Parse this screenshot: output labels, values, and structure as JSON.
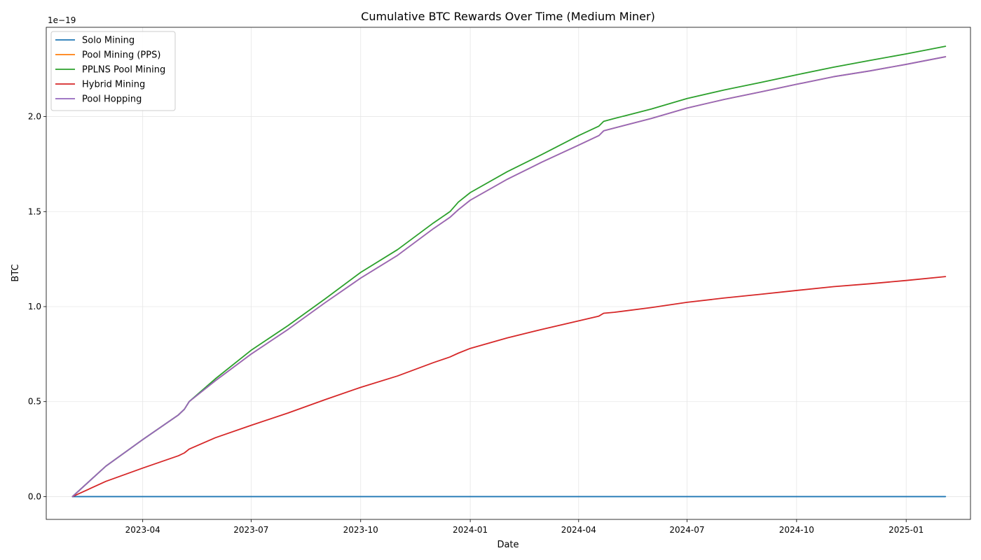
{
  "chart_data": {
    "type": "line",
    "title": "Cumulative BTC Rewards Over Time (Medium Miner)",
    "xlabel": "Date",
    "ylabel": "BTC",
    "y_offset_text": "1e−19",
    "xlim": [
      "2023-01-10",
      "2025-02-24"
    ],
    "ylim": [
      -1.2e-20,
      2.47e-19
    ],
    "x_ticks": [
      "2023-04-01",
      "2023-07-01",
      "2023-10-01",
      "2024-01-01",
      "2024-04-01",
      "2024-07-01",
      "2024-10-01",
      "2025-01-01"
    ],
    "x_tick_labels": [
      "2023-04",
      "2023-07",
      "2023-10",
      "2024-01",
      "2024-04",
      "2024-07",
      "2024-10",
      "2025-01"
    ],
    "y_ticks": [
      0,
      5e-20,
      1e-19,
      1.5e-19,
      2e-19
    ],
    "y_tick_labels": [
      "0.0",
      "0.5",
      "1.0",
      "1.5",
      "2.0"
    ],
    "grid": true,
    "legend_position": "upper-left",
    "series": [
      {
        "name": "Solo Mining",
        "color": "#1f77b4",
        "points": [
          [
            "2023-02-01",
            0
          ],
          [
            "2025-02-03",
            0
          ]
        ]
      },
      {
        "name": "Pool Mining (PPS)",
        "color": "#ff7f0e",
        "points": [
          [
            "2023-02-01",
            0
          ],
          [
            "2023-03-01",
            1.6e-20
          ],
          [
            "2023-04-01",
            3e-20
          ],
          [
            "2023-05-01",
            4.3e-20
          ],
          [
            "2023-05-06",
            4.6e-20
          ],
          [
            "2023-05-10",
            5e-20
          ],
          [
            "2023-06-01",
            6.1e-20
          ],
          [
            "2023-07-01",
            7.5e-20
          ],
          [
            "2023-08-01",
            8.8e-20
          ],
          [
            "2023-09-01",
            1.02e-19
          ],
          [
            "2023-10-01",
            1.15e-19
          ],
          [
            "2023-11-01",
            1.27e-19
          ],
          [
            "2023-12-01",
            1.41e-19
          ],
          [
            "2023-12-15",
            1.47e-19
          ],
          [
            "2023-12-22",
            1.51e-19
          ],
          [
            "2024-01-01",
            1.56e-19
          ],
          [
            "2024-02-01",
            1.67e-19
          ],
          [
            "2024-03-01",
            1.76e-19
          ],
          [
            "2024-04-01",
            1.85e-19
          ],
          [
            "2024-04-18",
            1.9e-19
          ],
          [
            "2024-04-22",
            1.925e-19
          ],
          [
            "2024-05-01",
            1.94e-19
          ],
          [
            "2024-06-01",
            1.99e-19
          ],
          [
            "2024-07-01",
            2.045e-19
          ],
          [
            "2024-08-01",
            2.09e-19
          ],
          [
            "2024-09-01",
            2.13e-19
          ],
          [
            "2024-10-01",
            2.17e-19
          ],
          [
            "2024-11-01",
            2.21e-19
          ],
          [
            "2024-12-01",
            2.24e-19
          ],
          [
            "2025-01-01",
            2.275e-19
          ],
          [
            "2025-02-03",
            2.315e-19
          ]
        ]
      },
      {
        "name": "PPLNS Pool Mining",
        "color": "#2ca02c",
        "points": [
          [
            "2023-02-01",
            0
          ],
          [
            "2023-03-01",
            1.6e-20
          ],
          [
            "2023-04-01",
            3e-20
          ],
          [
            "2023-05-01",
            4.3e-20
          ],
          [
            "2023-05-06",
            4.6e-20
          ],
          [
            "2023-05-10",
            5e-20
          ],
          [
            "2023-06-01",
            6.2e-20
          ],
          [
            "2023-07-01",
            7.7e-20
          ],
          [
            "2023-08-01",
            9e-20
          ],
          [
            "2023-09-01",
            1.04e-19
          ],
          [
            "2023-10-01",
            1.18e-19
          ],
          [
            "2023-11-01",
            1.3e-19
          ],
          [
            "2023-12-01",
            1.44e-19
          ],
          [
            "2023-12-15",
            1.5e-19
          ],
          [
            "2023-12-22",
            1.55e-19
          ],
          [
            "2024-01-01",
            1.6e-19
          ],
          [
            "2024-02-01",
            1.71e-19
          ],
          [
            "2024-03-01",
            1.8e-19
          ],
          [
            "2024-04-01",
            1.9e-19
          ],
          [
            "2024-04-18",
            1.95e-19
          ],
          [
            "2024-04-22",
            1.975e-19
          ],
          [
            "2024-05-01",
            1.99e-19
          ],
          [
            "2024-06-01",
            2.04e-19
          ],
          [
            "2024-07-01",
            2.095e-19
          ],
          [
            "2024-08-01",
            2.14e-19
          ],
          [
            "2024-09-01",
            2.18e-19
          ],
          [
            "2024-10-01",
            2.22e-19
          ],
          [
            "2024-11-01",
            2.26e-19
          ],
          [
            "2024-12-01",
            2.295e-19
          ],
          [
            "2025-01-01",
            2.33e-19
          ],
          [
            "2025-02-03",
            2.37e-19
          ]
        ]
      },
      {
        "name": "Hybrid Mining",
        "color": "#d62728",
        "points": [
          [
            "2023-02-01",
            0
          ],
          [
            "2023-03-01",
            8e-21
          ],
          [
            "2023-04-01",
            1.5e-20
          ],
          [
            "2023-05-01",
            2.15e-20
          ],
          [
            "2023-05-06",
            2.3e-20
          ],
          [
            "2023-05-10",
            2.5e-20
          ],
          [
            "2023-06-01",
            3.1e-20
          ],
          [
            "2023-07-01",
            3.75e-20
          ],
          [
            "2023-08-01",
            4.4e-20
          ],
          [
            "2023-09-01",
            5.1e-20
          ],
          [
            "2023-10-01",
            5.75e-20
          ],
          [
            "2023-11-01",
            6.35e-20
          ],
          [
            "2023-12-01",
            7.05e-20
          ],
          [
            "2023-12-15",
            7.35e-20
          ],
          [
            "2023-12-22",
            7.55e-20
          ],
          [
            "2024-01-01",
            7.8e-20
          ],
          [
            "2024-02-01",
            8.35e-20
          ],
          [
            "2024-03-01",
            8.8e-20
          ],
          [
            "2024-04-01",
            9.25e-20
          ],
          [
            "2024-04-18",
            9.5e-20
          ],
          [
            "2024-04-22",
            9.65e-20
          ],
          [
            "2024-05-01",
            9.7e-20
          ],
          [
            "2024-06-01",
            9.95e-20
          ],
          [
            "2024-07-01",
            1.0225e-19
          ],
          [
            "2024-08-01",
            1.045e-19
          ],
          [
            "2024-09-01",
            1.065e-19
          ],
          [
            "2024-10-01",
            1.085e-19
          ],
          [
            "2024-11-01",
            1.105e-19
          ],
          [
            "2024-12-01",
            1.12e-19
          ],
          [
            "2025-01-01",
            1.1375e-19
          ],
          [
            "2025-02-03",
            1.158e-19
          ]
        ]
      },
      {
        "name": "Pool Hopping",
        "color": "#9467bd",
        "points": [
          [
            "2023-02-01",
            0
          ],
          [
            "2023-03-01",
            1.6e-20
          ],
          [
            "2023-04-01",
            3e-20
          ],
          [
            "2023-05-01",
            4.3e-20
          ],
          [
            "2023-05-06",
            4.6e-20
          ],
          [
            "2023-05-10",
            5e-20
          ],
          [
            "2023-06-01",
            6.1e-20
          ],
          [
            "2023-07-01",
            7.5e-20
          ],
          [
            "2023-08-01",
            8.8e-20
          ],
          [
            "2023-09-01",
            1.02e-19
          ],
          [
            "2023-10-01",
            1.15e-19
          ],
          [
            "2023-11-01",
            1.27e-19
          ],
          [
            "2023-12-01",
            1.41e-19
          ],
          [
            "2023-12-15",
            1.47e-19
          ],
          [
            "2023-12-22",
            1.51e-19
          ],
          [
            "2024-01-01",
            1.56e-19
          ],
          [
            "2024-02-01",
            1.67e-19
          ],
          [
            "2024-03-01",
            1.76e-19
          ],
          [
            "2024-04-01",
            1.85e-19
          ],
          [
            "2024-04-18",
            1.9e-19
          ],
          [
            "2024-04-22",
            1.925e-19
          ],
          [
            "2024-05-01",
            1.94e-19
          ],
          [
            "2024-06-01",
            1.99e-19
          ],
          [
            "2024-07-01",
            2.045e-19
          ],
          [
            "2024-08-01",
            2.09e-19
          ],
          [
            "2024-09-01",
            2.13e-19
          ],
          [
            "2024-10-01",
            2.17e-19
          ],
          [
            "2024-11-01",
            2.21e-19
          ],
          [
            "2024-12-01",
            2.24e-19
          ],
          [
            "2025-01-01",
            2.275e-19
          ],
          [
            "2025-02-03",
            2.315e-19
          ]
        ]
      }
    ]
  }
}
